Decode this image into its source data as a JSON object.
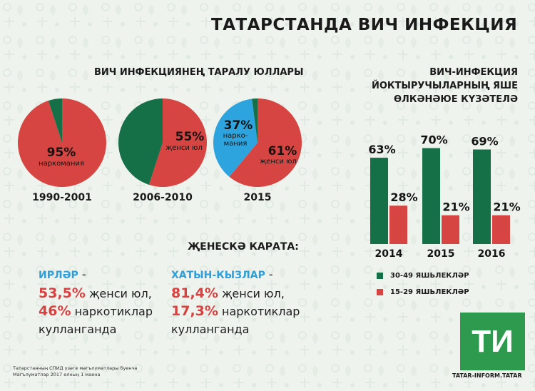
{
  "title": "ТАТАРСТАНДА ВИЧ ИНФЕКЦИЯ",
  "colors": {
    "green": "#157048",
    "red": "#d64541",
    "blue": "#2ea4de",
    "label_blue": "#2f9fd9",
    "logo_green": "#2e9a4e"
  },
  "pies": {
    "title": "ВИЧ ИНФЕКЦИЯНЕҢ ТАРАЛУ ЮЛЛАРЫ",
    "items": [
      {
        "period": "1990-2001",
        "pct": "95%",
        "label": "наркомания"
      },
      {
        "period": "2006-2010",
        "pct": "55%",
        "label": "җенси юл"
      },
      {
        "period": "2015",
        "pct": "61%",
        "label": "җенси юл",
        "pct2": "37%",
        "label2_line1": "нарко-",
        "label2_line2": "мания"
      }
    ]
  },
  "bars": {
    "title_line1": "ВИЧ-ИНФЕКЦИЯ",
    "title_line2": "ЙОКТЫРУЧЫЛАРНЫҢ ЯШЕ",
    "title_line3": "ӨЛКӘНӘЮЕ КҮЗӘТЕЛӘ",
    "legend": [
      "30-49 ЯШЬЛЕКЛӘР",
      "15-29 ЯШЬЛЕКЛӘР"
    ]
  },
  "chart_data": [
    {
      "type": "pie",
      "category": "1990-2001",
      "slices": [
        {
          "name": "наркомания",
          "value": 95,
          "color": "#d64541"
        },
        {
          "name": "other",
          "value": 5,
          "color": "#157048"
        }
      ]
    },
    {
      "type": "pie",
      "category": "2006-2010",
      "slices": [
        {
          "name": "җенси юл",
          "value": 55,
          "color": "#d64541"
        },
        {
          "name": "other",
          "value": 45,
          "color": "#157048"
        }
      ]
    },
    {
      "type": "pie",
      "category": "2015",
      "slices": [
        {
          "name": "җенси юл",
          "value": 61,
          "color": "#d64541"
        },
        {
          "name": "наркомания",
          "value": 37,
          "color": "#2ea4de"
        },
        {
          "name": "other",
          "value": 2,
          "color": "#157048"
        }
      ]
    },
    {
      "type": "bar",
      "categories": [
        "2014",
        "2015",
        "2016"
      ],
      "series": [
        {
          "name": "30-49 ЯШЬЛЕКЛӘР",
          "values": [
            63,
            70,
            69
          ],
          "color": "#157048"
        },
        {
          "name": "15-29 ЯШЬЛЕКЛӘР",
          "values": [
            28,
            21,
            21
          ],
          "color": "#d64541"
        }
      ],
      "ylim": [
        0,
        100
      ],
      "legend_position": "bottom"
    }
  ],
  "gender": {
    "title": "ҖЕНЕСКӘ КАРАТА:",
    "men": {
      "label": "ИРЛӘР",
      "dash": " -",
      "pct1": "53,5%",
      "text1": " җенси юл,",
      "pct2": "46%",
      "text2": " наркотиклар",
      "text3": "кулланганда"
    },
    "women": {
      "label": "ХАТЫН-КЫЗЛАР",
      "dash": " -",
      "pct1": "81,4%",
      "text1": " җенси юл,",
      "pct2": "17,3%",
      "text2": " наркотиклар",
      "text3": "кулланганда"
    }
  },
  "source": {
    "line1": "Татарстанның СПИД үзәге мәгълүматлары буенча",
    "line2": "Мәгълүматлар 2017 елның 1 маена"
  },
  "logo": {
    "text": "ТИ",
    "caption": "TATAR-INFORM.TATAR"
  }
}
